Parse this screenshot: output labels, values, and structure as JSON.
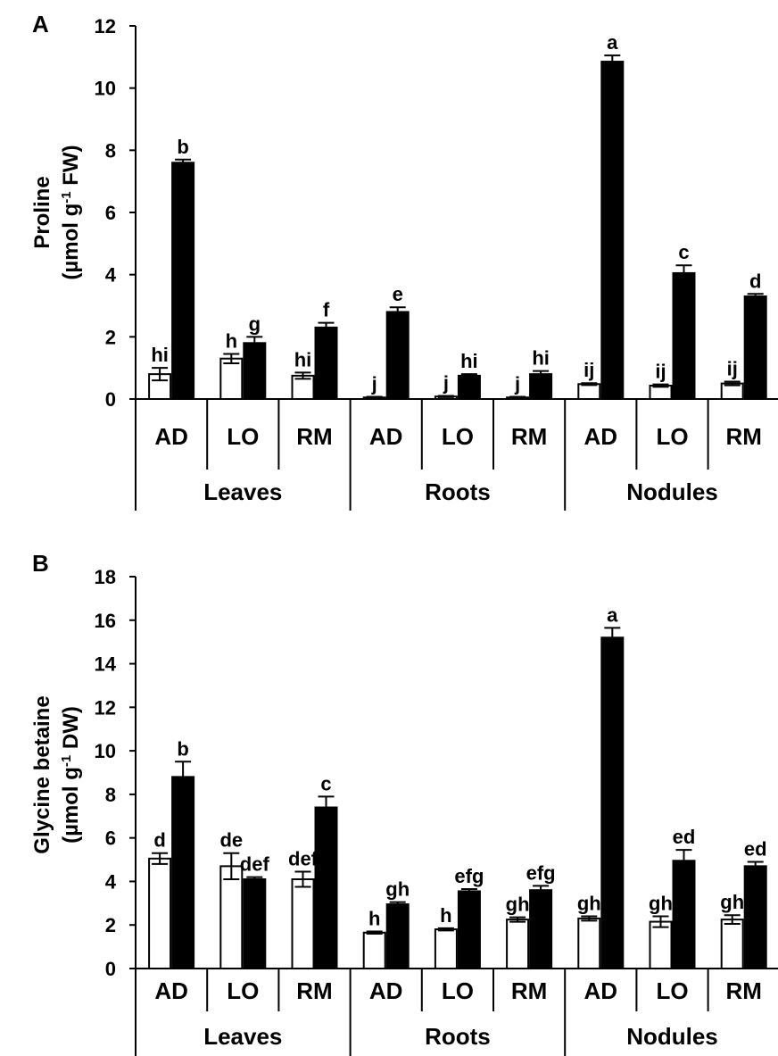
{
  "chart_data": [
    {
      "panel_label": "A",
      "type": "bar",
      "ylabel_line1": "Proline",
      "ylabel_line2_pre": "(µmol g",
      "ylabel_line2_sup": "-1",
      "ylabel_line2_post": " FW)",
      "ylim": [
        0,
        12
      ],
      "yticks": [
        0,
        2,
        4,
        6,
        8,
        10,
        12
      ],
      "groups": [
        "Leaves",
        "Roots",
        "Nodules"
      ],
      "categories": [
        "AD",
        "LO",
        "RM",
        "AD",
        "LO",
        "RM",
        "AD",
        "LO",
        "RM"
      ],
      "series": [
        {
          "color": "#ffffff",
          "values": [
            0.8,
            1.3,
            0.75,
            0.05,
            0.08,
            0.05,
            0.48,
            0.43,
            0.5
          ],
          "errors": [
            0.2,
            0.15,
            0.1,
            0.02,
            0.02,
            0.02,
            0.03,
            0.04,
            0.06
          ],
          "labels": [
            "hi",
            "h",
            "hi",
            "j",
            "j",
            "j",
            "ij",
            "ij",
            "ij"
          ]
        },
        {
          "color": "#000000",
          "values": [
            7.6,
            1.8,
            2.3,
            2.8,
            0.75,
            0.8,
            10.85,
            4.05,
            3.3
          ],
          "errors": [
            0.1,
            0.2,
            0.15,
            0.15,
            0.05,
            0.1,
            0.2,
            0.25,
            0.08
          ],
          "labels": [
            "b",
            "g",
            "f",
            "e",
            "hi",
            "hi",
            "a",
            "c",
            "d"
          ]
        }
      ]
    },
    {
      "panel_label": "B",
      "type": "bar",
      "ylabel_line1": "Glycine betaine",
      "ylabel_line2_pre": "(µmol g",
      "ylabel_line2_sup": "-1",
      "ylabel_line2_post": " DW)",
      "ylim": [
        0,
        18
      ],
      "yticks": [
        0,
        2,
        4,
        6,
        8,
        10,
        12,
        14,
        16,
        18
      ],
      "groups": [
        "Leaves",
        "Roots",
        "Nodules"
      ],
      "categories": [
        "AD",
        "LO",
        "RM",
        "AD",
        "LO",
        "RM",
        "AD",
        "LO",
        "RM"
      ],
      "series": [
        {
          "color": "#ffffff",
          "values": [
            5.05,
            4.7,
            4.1,
            1.65,
            1.8,
            2.25,
            2.3,
            2.15,
            2.25
          ],
          "errors": [
            0.25,
            0.6,
            0.35,
            0.05,
            0.05,
            0.1,
            0.1,
            0.25,
            0.2
          ],
          "labels": [
            "d",
            "de",
            "def",
            "h",
            "h",
            "gh",
            "gh",
            "gh",
            "gh"
          ]
        },
        {
          "color": "#000000",
          "values": [
            8.8,
            4.1,
            7.4,
            2.95,
            3.55,
            3.6,
            15.2,
            4.95,
            4.7
          ],
          "errors": [
            0.7,
            0.1,
            0.5,
            0.1,
            0.1,
            0.2,
            0.45,
            0.5,
            0.2
          ],
          "labels": [
            "b",
            "def",
            "c",
            "gh",
            "efg",
            "efg",
            "a",
            "ed",
            "ed"
          ]
        }
      ]
    }
  ]
}
